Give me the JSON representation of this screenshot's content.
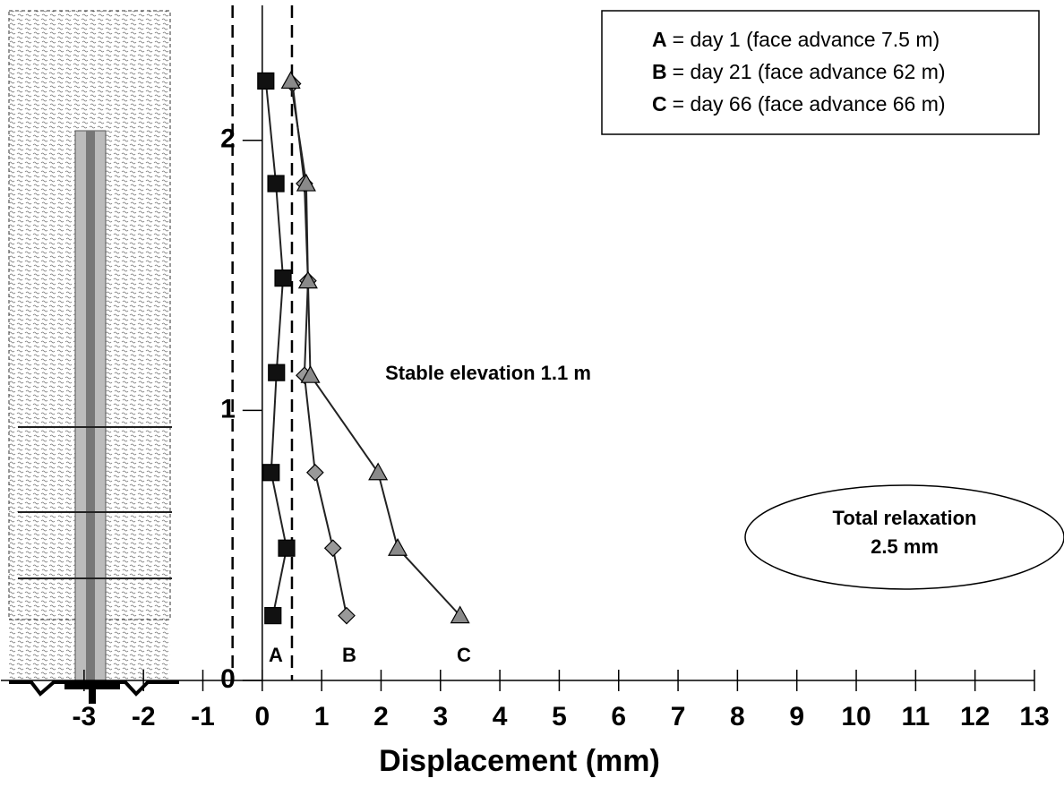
{
  "chart_data": {
    "type": "line",
    "x_label": "Displacement (mm)",
    "xlim": [
      -4.4,
      13
    ],
    "xticks": [
      -3,
      -2,
      -1,
      0,
      1,
      2,
      3,
      4,
      5,
      6,
      7,
      8,
      9,
      10,
      11,
      12,
      13
    ],
    "ylim": [
      0,
      2.5
    ],
    "yticks": [
      0,
      1,
      2
    ],
    "reference_lines": [
      -0.5,
      0.5
    ],
    "series": [
      {
        "name": "A",
        "legend_label": "= day   1  (face advance 7.5 m)",
        "color": "#111111",
        "marker": "square",
        "x": [
          0.06,
          0.23,
          0.35,
          0.24,
          0.15,
          0.41,
          0.18
        ],
        "values": [
          2.22,
          1.84,
          1.49,
          1.14,
          0.77,
          0.49,
          0.24
        ]
      },
      {
        "name": "B",
        "legend_label": "= day 21  (face advance 62 m)",
        "color": "#999999",
        "marker": "diamond",
        "x": [
          0.51,
          0.71,
          0.77,
          0.71,
          0.89,
          1.19,
          1.42
        ],
        "values": [
          2.21,
          1.84,
          1.48,
          1.13,
          0.77,
          0.49,
          0.24
        ]
      },
      {
        "name": "C",
        "legend_label": "= day 66  (face advance 66 m)",
        "color": "#8a8a8a",
        "marker": "triangle",
        "x": [
          0.48,
          0.74,
          0.77,
          0.81,
          1.95,
          2.28,
          3.33
        ],
        "values": [
          2.22,
          1.84,
          1.48,
          1.13,
          0.77,
          0.49,
          0.24
        ]
      }
    ],
    "annotations": [
      "Stable elevation 1.1 m"
    ],
    "callout": [
      "Total relaxation",
      "2.5 mm"
    ]
  }
}
